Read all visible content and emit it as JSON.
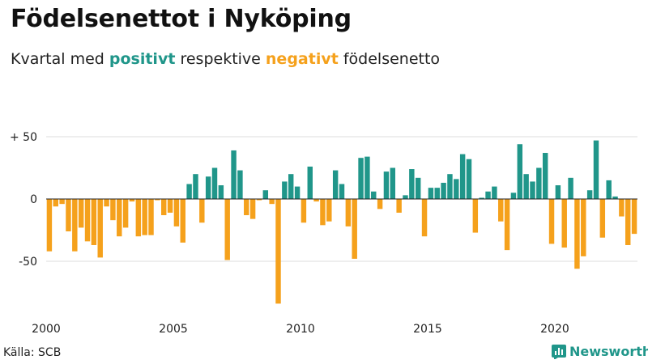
{
  "title": "Födelsenettot i Nyköping",
  "subtitle": {
    "prefix": "Kvartal med ",
    "positive_word": "positivt",
    "middle": " respektive ",
    "negative_word": "negativt",
    "suffix": " födelsenetto"
  },
  "source": "Källa: SCB",
  "brand": {
    "name": "Newsworthy",
    "logo_icon": "bar-chart-logo-icon"
  },
  "colors": {
    "positive": "#20968a",
    "negative": "#f5a11c",
    "grid": "#dddddd",
    "zero_line": "#222222"
  },
  "chart_data": {
    "type": "bar",
    "y_ticks": [
      {
        "value": 50,
        "label": "+ 50"
      },
      {
        "value": 0,
        "label": "0"
      },
      {
        "value": -50,
        "label": "-50"
      }
    ],
    "x_ticks": [
      "2000",
      "2005",
      "2010",
      "2015",
      "2020"
    ],
    "ylim": [
      -85,
      50
    ],
    "x_start_year": 2000,
    "grid": true,
    "series": [
      {
        "values": [
          -42,
          -6,
          -4,
          -26,
          -42,
          -23,
          -34,
          -37,
          -47,
          -6,
          -17,
          -30,
          -23,
          -2,
          -30,
          -29,
          -29,
          -1,
          -13,
          -11,
          -22,
          -35,
          12,
          20,
          -19,
          18,
          25,
          11,
          -49,
          39,
          23,
          -13,
          -16,
          -1,
          7,
          -4,
          -84,
          14,
          20,
          10,
          -19,
          26,
          -2,
          -21,
          -18,
          23,
          12,
          -22,
          -48,
          33,
          34,
          6,
          -8,
          22,
          25,
          -11,
          3,
          24,
          17,
          -30,
          9,
          9,
          13,
          20,
          16,
          36,
          32,
          -27,
          1,
          6,
          10,
          -18,
          -41,
          5,
          44,
          20,
          14,
          25,
          37,
          -36,
          11,
          -39,
          17,
          -56,
          -46,
          7,
          47,
          -31,
          15,
          2,
          -14,
          -37,
          -28
        ]
      }
    ]
  }
}
